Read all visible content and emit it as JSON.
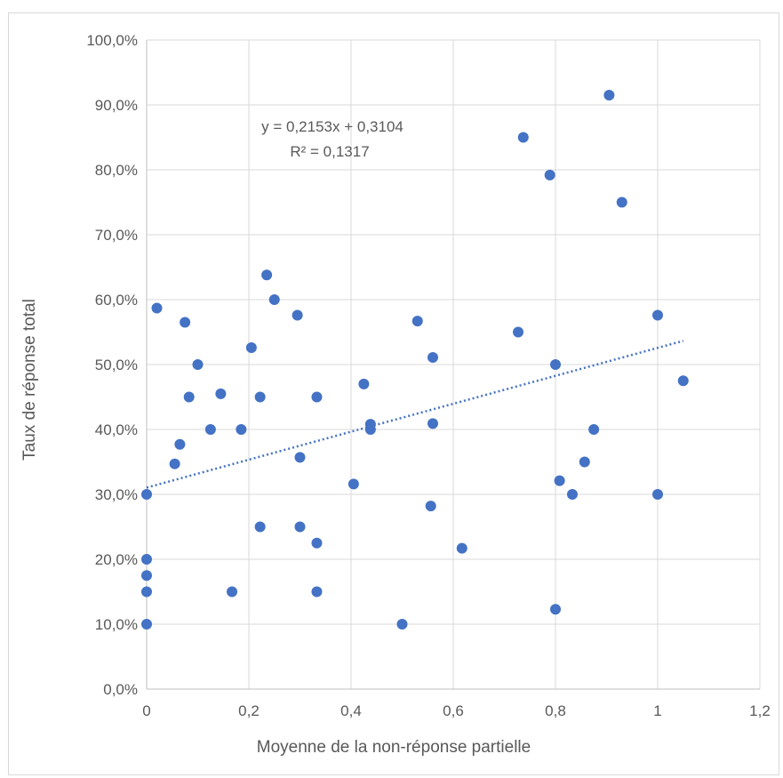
{
  "chart_data": {
    "type": "scatter",
    "xlabel": "Moyenne de la non-réponse partielle",
    "ylabel": "Taux de réponse total",
    "xlim": [
      0,
      1.2
    ],
    "ylim": [
      0,
      1.0
    ],
    "x_ticks": [
      0,
      0.2,
      0.4,
      0.6,
      0.8,
      1.0,
      1.2
    ],
    "x_tick_labels": [
      "0",
      "0,2",
      "0,4",
      "0,6",
      "0,8",
      "1",
      "1,2"
    ],
    "y_ticks": [
      0,
      0.1,
      0.2,
      0.3,
      0.4,
      0.5,
      0.6,
      0.7,
      0.8,
      0.9,
      1.0
    ],
    "y_tick_labels": [
      "0,0%",
      "10,0%",
      "20,0%",
      "30,0%",
      "40,0%",
      "50,0%",
      "60,0%",
      "70,0%",
      "80,0%",
      "90,0%",
      "100,0%"
    ],
    "grid": true,
    "marker_color": "#4472C4",
    "trendline": {
      "type": "linear",
      "slope": 0.2153,
      "intercept": 0.3104,
      "x_range": [
        0,
        1.05
      ],
      "style": "dotted",
      "color": "#4472C4",
      "equation_text": "y = 0,2153x + 0,3104",
      "r2_text": "R² = 0,1317"
    },
    "points": [
      {
        "x": 0.0,
        "y": 0.3
      },
      {
        "x": 0.0,
        "y": 0.2
      },
      {
        "x": 0.0,
        "y": 0.175
      },
      {
        "x": 0.0,
        "y": 0.15
      },
      {
        "x": 0.0,
        "y": 0.1
      },
      {
        "x": 0.02,
        "y": 0.587
      },
      {
        "x": 0.055,
        "y": 0.347
      },
      {
        "x": 0.065,
        "y": 0.377
      },
      {
        "x": 0.075,
        "y": 0.565
      },
      {
        "x": 0.083,
        "y": 0.45
      },
      {
        "x": 0.1,
        "y": 0.5
      },
      {
        "x": 0.125,
        "y": 0.4
      },
      {
        "x": 0.145,
        "y": 0.455
      },
      {
        "x": 0.167,
        "y": 0.15
      },
      {
        "x": 0.185,
        "y": 0.4
      },
      {
        "x": 0.205,
        "y": 0.526
      },
      {
        "x": 0.222,
        "y": 0.25
      },
      {
        "x": 0.222,
        "y": 0.45
      },
      {
        "x": 0.235,
        "y": 0.638
      },
      {
        "x": 0.25,
        "y": 0.6
      },
      {
        "x": 0.295,
        "y": 0.576
      },
      {
        "x": 0.3,
        "y": 0.357
      },
      {
        "x": 0.3,
        "y": 0.25
      },
      {
        "x": 0.333,
        "y": 0.45
      },
      {
        "x": 0.333,
        "y": 0.225
      },
      {
        "x": 0.333,
        "y": 0.15
      },
      {
        "x": 0.405,
        "y": 0.316
      },
      {
        "x": 0.425,
        "y": 0.47
      },
      {
        "x": 0.438,
        "y": 0.408
      },
      {
        "x": 0.438,
        "y": 0.4
      },
      {
        "x": 0.5,
        "y": 0.1
      },
      {
        "x": 0.53,
        "y": 0.567
      },
      {
        "x": 0.556,
        "y": 0.282
      },
      {
        "x": 0.56,
        "y": 0.511
      },
      {
        "x": 0.56,
        "y": 0.409
      },
      {
        "x": 0.617,
        "y": 0.217
      },
      {
        "x": 0.727,
        "y": 0.55
      },
      {
        "x": 0.737,
        "y": 0.85
      },
      {
        "x": 0.789,
        "y": 0.792
      },
      {
        "x": 0.8,
        "y": 0.5
      },
      {
        "x": 0.8,
        "y": 0.123
      },
      {
        "x": 0.808,
        "y": 0.321
      },
      {
        "x": 0.833,
        "y": 0.3
      },
      {
        "x": 0.857,
        "y": 0.35
      },
      {
        "x": 0.875,
        "y": 0.4
      },
      {
        "x": 0.905,
        "y": 0.915
      },
      {
        "x": 0.93,
        "y": 0.75
      },
      {
        "x": 1.0,
        "y": 0.576
      },
      {
        "x": 1.0,
        "y": 0.3
      },
      {
        "x": 1.05,
        "y": 0.475
      }
    ]
  }
}
